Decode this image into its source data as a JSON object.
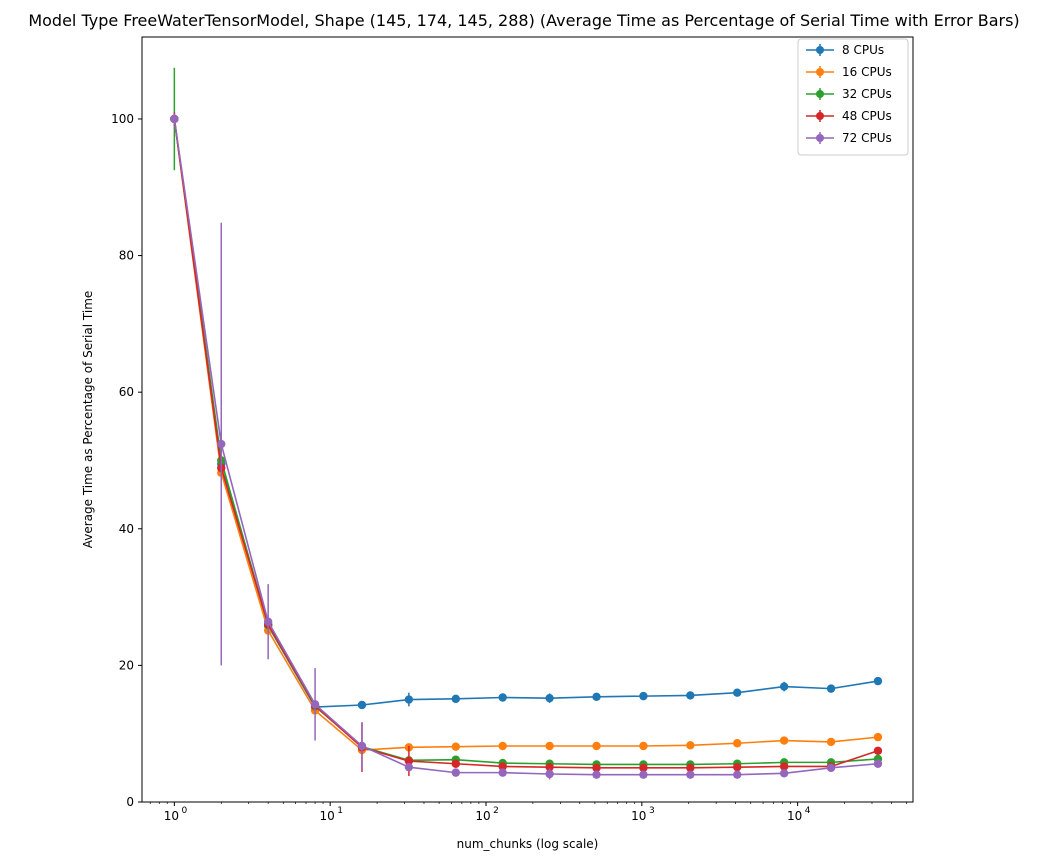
{
  "chart_data": {
    "type": "line",
    "title": "Model Type FreeWaterTensorModel, Shape (145, 174, 145, 288) (Average Time as Percentage of Serial Time with Error Bars)",
    "xlabel": "num_chunks (log scale)",
    "ylabel": "Average Time as Percentage of Serial Time",
    "xscale": "log",
    "xlim": [
      0.62,
      55000
    ],
    "ylim": [
      0,
      112
    ],
    "x_ticks": [
      1,
      10,
      100,
      1000,
      10000
    ],
    "x_tick_labels": [
      "10",
      "10",
      "10",
      "10",
      "10"
    ],
    "x_tick_exponents": [
      "0",
      "1",
      "2",
      "3",
      "4"
    ],
    "y_ticks": [
      0,
      20,
      40,
      60,
      80,
      100
    ],
    "y_tick_labels": [
      "0",
      "20",
      "40",
      "60",
      "80",
      "100"
    ],
    "grid": false,
    "legend_position": "top-right",
    "x": [
      1,
      2,
      4,
      8,
      16,
      32,
      64,
      128,
      256,
      512,
      1024,
      2048,
      4096,
      8192,
      16384,
      32768
    ],
    "series": [
      {
        "name": "8 CPUs",
        "color": "#1f77b4",
        "values": [
          100,
          49.5,
          25.8,
          13.9,
          14.2,
          15.0,
          15.1,
          15.3,
          15.2,
          15.4,
          15.5,
          15.6,
          16.0,
          16.9,
          16.6,
          17.7
        ],
        "errors": [
          0.8,
          1.2,
          0.6,
          0.4,
          0.4,
          1.0,
          0.4,
          0.4,
          0.7,
          0.4,
          0.4,
          0.4,
          0.4,
          0.7,
          0.4,
          0.5
        ]
      },
      {
        "name": "16 CPUs",
        "color": "#ff7f0e",
        "values": [
          100,
          48.2,
          25.1,
          13.4,
          7.6,
          8.0,
          8.1,
          8.2,
          8.2,
          8.2,
          8.2,
          8.3,
          8.6,
          9.0,
          8.8,
          9.5
        ],
        "errors": [
          0.6,
          0.8,
          0.5,
          0.4,
          0.4,
          0.3,
          0.3,
          0.3,
          0.3,
          0.3,
          0.3,
          0.3,
          0.3,
          0.3,
          0.3,
          0.4
        ]
      },
      {
        "name": "32 CPUs",
        "color": "#2ca02c",
        "values": [
          100,
          50.0,
          25.9,
          14.0,
          8.1,
          6.1,
          6.2,
          5.7,
          5.6,
          5.5,
          5.5,
          5.5,
          5.6,
          5.8,
          5.8,
          6.3
        ],
        "errors": [
          7.5,
          1.5,
          0.8,
          0.6,
          0.5,
          0.4,
          0.3,
          0.3,
          0.3,
          0.3,
          0.3,
          0.3,
          0.3,
          0.3,
          0.3,
          0.3
        ]
      },
      {
        "name": "48 CPUs",
        "color": "#d62728",
        "values": [
          100,
          48.9,
          26.0,
          14.1,
          8.0,
          6.0,
          5.6,
          5.2,
          5.1,
          5.0,
          5.0,
          5.0,
          5.1,
          5.2,
          5.2,
          7.5
        ],
        "errors": [
          1.0,
          1.2,
          0.7,
          0.5,
          3.6,
          2.2,
          0.4,
          0.3,
          0.3,
          0.3,
          0.3,
          0.3,
          0.3,
          0.3,
          0.3,
          0.4
        ]
      },
      {
        "name": "72 CPUs",
        "color": "#9467bd",
        "values": [
          100,
          52.4,
          26.4,
          14.3,
          8.2,
          5.1,
          4.3,
          4.3,
          4.1,
          4.0,
          4.0,
          4.0,
          4.0,
          4.2,
          5.0,
          5.6
        ],
        "errors": [
          0.8,
          32.4,
          5.5,
          5.3,
          3.5,
          0.6,
          0.3,
          0.3,
          0.8,
          0.3,
          0.3,
          0.3,
          0.3,
          0.3,
          0.3,
          0.3
        ]
      }
    ]
  }
}
